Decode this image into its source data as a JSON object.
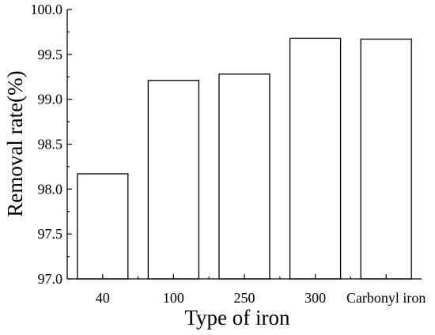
{
  "chart_data": {
    "type": "bar",
    "categories": [
      "40",
      "100",
      "250",
      "300",
      "Carbonyl iron"
    ],
    "values": [
      98.17,
      99.21,
      99.28,
      99.68,
      99.67
    ],
    "xlabel": "Type of iron",
    "ylabel": "Removal rate(%)",
    "ylim": [
      97.0,
      100.0
    ],
    "yticks": [
      "97.0",
      "97.5",
      "98.0",
      "98.5",
      "99.0",
      "99.5",
      "100.0"
    ],
    "grid": false,
    "legend": "none",
    "colors": {
      "bar_fill": "#ffffff",
      "bar_stroke": "#000000",
      "axis": "#000000"
    }
  }
}
